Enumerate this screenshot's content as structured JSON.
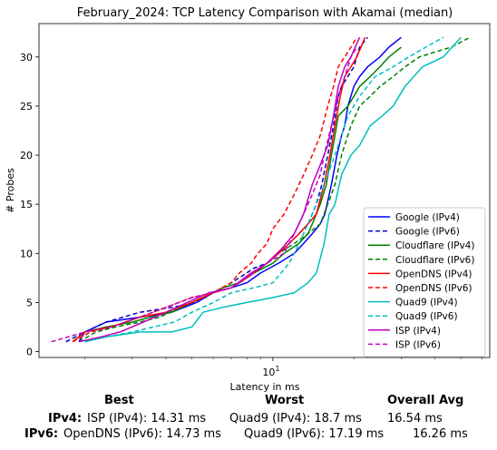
{
  "chart_data": {
    "type": "line",
    "title": "February_2024: TCP Latency Comparison with Akamai (median)",
    "xlabel": "Latency in ms",
    "ylabel": "# Probes",
    "xscale": "log",
    "xlim": [
      1.35,
      64
    ],
    "ylim": [
      -0.6,
      33.4
    ],
    "xticks": [
      {
        "value": 10,
        "label": "10^1",
        "base": "10",
        "exp": "1"
      }
    ],
    "yticks": [
      0,
      5,
      10,
      15,
      20,
      25,
      30
    ],
    "grid": false,
    "legend_position": "lower right",
    "series": [
      {
        "name": "Google (IPv4)",
        "color": "#0000ff",
        "dash": "solid",
        "x": [
          1.9,
          2.0,
          2.4,
          3.2,
          4.2,
          5.2,
          6.0,
          7.0,
          8.0,
          9.0,
          10.5,
          12.0,
          13.0,
          14.0,
          15.0,
          15.6,
          16.5,
          17.3,
          18.0,
          18.5,
          19.0,
          20.0,
          21.0,
          22.5,
          25.0,
          27.0,
          30.0
        ],
        "y": [
          1,
          2,
          3,
          3.5,
          4,
          5,
          6,
          6.5,
          7,
          8,
          9,
          10,
          11,
          12,
          13,
          14,
          17,
          20,
          22,
          23,
          25,
          27,
          28,
          29,
          30,
          31,
          32
        ]
      },
      {
        "name": "Google (IPv6)",
        "color": "#0000cc",
        "dash": "dashed",
        "x": [
          1.7,
          2.0,
          2.4,
          3.2,
          4.2,
          5.2,
          6.0,
          7.0,
          7.5,
          8.5,
          9.5,
          10.5,
          11.5,
          12.5,
          13.5,
          14.5,
          15.2,
          16.0,
          16.8,
          17.5,
          18.0,
          19.0,
          20.0,
          21.0,
          22.5
        ],
        "y": [
          1,
          2,
          3,
          4,
          4.5,
          5,
          6,
          7,
          7.5,
          8.5,
          9,
          10,
          11,
          12,
          13,
          15,
          17,
          20,
          23,
          26,
          27,
          28,
          29,
          31,
          32
        ]
      },
      {
        "name": "Cloudflare (IPv4)",
        "color": "#008000",
        "dash": "solid",
        "x": [
          1.8,
          2.0,
          2.4,
          3.0,
          3.5,
          4.2,
          5.0,
          5.5,
          6.5,
          7.5,
          8.5,
          10.0,
          11.0,
          12.5,
          13.5,
          14.0,
          15.0,
          15.8,
          16.5,
          17.0,
          17.5,
          19.0,
          20.0,
          21.0,
          23.0,
          25.0,
          27.0,
          30.0
        ],
        "y": [
          1,
          2,
          2.5,
          3,
          3.5,
          4,
          5,
          5.5,
          6.5,
          7,
          8,
          9,
          10,
          11,
          12,
          13,
          15,
          17,
          20,
          22,
          24,
          25,
          26,
          27,
          28,
          29,
          30,
          31
        ]
      },
      {
        "name": "Cloudflare (IPv6)",
        "color": "#008000",
        "dash": "dashed",
        "x": [
          1.9,
          2.2,
          2.6,
          3.2,
          3.8,
          4.5,
          5.5,
          6.5,
          7.5,
          8.5,
          9.5,
          10.5,
          12.0,
          13.5,
          15.0,
          16.0,
          17.0,
          18.0,
          19.5,
          21.0,
          23.0,
          25.0,
          28.0,
          31.0,
          35.0,
          40.0,
          46.0,
          54.0
        ],
        "y": [
          1,
          2,
          2.5,
          3,
          3.5,
          4.5,
          5.5,
          6.5,
          7,
          8,
          9,
          10,
          11,
          12,
          13,
          15,
          17,
          20,
          23,
          25,
          26,
          27,
          28,
          29,
          30,
          30.5,
          31,
          32
        ]
      },
      {
        "name": "OpenDNS (IPv4)",
        "color": "#ff0000",
        "dash": "solid",
        "x": [
          1.8,
          2.0,
          2.5,
          3.2,
          4.0,
          5.0,
          6.0,
          7.0,
          8.0,
          9.5,
          11.0,
          12.5,
          13.5,
          14.5,
          15.5,
          16.3,
          17.0,
          17.8,
          18.5,
          19.5,
          20.5,
          22.0
        ],
        "y": [
          1,
          2,
          2.5,
          3.5,
          4,
          5,
          6,
          6.5,
          7.5,
          9,
          10.5,
          12,
          13,
          14,
          17,
          20,
          23,
          26,
          28,
          29,
          30,
          32
        ]
      },
      {
        "name": "OpenDNS (IPv6)",
        "color": "#ff0000",
        "dash": "dashed",
        "x": [
          1.8,
          2.1,
          2.5,
          3.2,
          4.0,
          5.0,
          6.0,
          7.0,
          7.5,
          8.3,
          8.8,
          9.5,
          10.0,
          11.0,
          12.0,
          13.0,
          14.0,
          15.0,
          16.0,
          16.8,
          17.5,
          18.5,
          19.5,
          20.5
        ],
        "y": [
          1,
          2,
          2.5,
          3.5,
          4.5,
          5.5,
          6,
          7,
          8,
          9,
          10,
          11,
          12.5,
          14,
          16,
          18,
          20,
          22,
          25,
          27,
          29,
          30,
          31,
          32
        ]
      },
      {
        "name": "Quad9 (IPv4)",
        "color": "#00bfbf",
        "dash": "solid",
        "x": [
          2.0,
          2.4,
          3.2,
          4.2,
          5.0,
          5.5,
          6.5,
          8.0,
          10.0,
          12.0,
          13.5,
          14.5,
          15.5,
          16.2,
          17.0,
          18.0,
          19.5,
          21.0,
          23.0,
          25.5,
          28.0,
          31.0,
          36.0,
          43.0,
          50.0
        ],
        "y": [
          1,
          1.5,
          2,
          2,
          2.5,
          4,
          4.5,
          5,
          5.5,
          6,
          7,
          8,
          11,
          14,
          15,
          18,
          20,
          21,
          23,
          24,
          25,
          27,
          29,
          30,
          32
        ]
      },
      {
        "name": "Quad9 (IPv6)",
        "color": "#00bfbf",
        "dash": "dashed",
        "x": [
          2.0,
          2.4,
          3.0,
          3.6,
          4.3,
          5.0,
          6.0,
          7.0,
          8.5,
          10.0,
          11.5,
          12.5,
          13.5,
          14.5,
          15.5,
          16.5,
          17.5,
          19.0,
          21.0,
          24.0,
          28.0,
          32.0,
          37.0,
          43.0
        ],
        "y": [
          1,
          1.5,
          2,
          2.5,
          3,
          4,
          5,
          6,
          6.5,
          7,
          9,
          11,
          13,
          15,
          17,
          19,
          21,
          24,
          26,
          28,
          29,
          30,
          31,
          32
        ]
      },
      {
        "name": "ISP (IPv4)",
        "color": "#bf00bf",
        "dash": "solid",
        "x": [
          1.9,
          2.3,
          2.7,
          3.3,
          4.0,
          4.8,
          5.8,
          7.0,
          8.3,
          9.5,
          10.8,
          12.0,
          13.0,
          14.0,
          15.0,
          16.0,
          16.8,
          17.5,
          18.5,
          19.5,
          21.0
        ],
        "y": [
          1,
          1.5,
          2,
          3,
          4,
          5,
          6,
          6.5,
          8,
          9,
          10.5,
          12,
          14,
          17,
          19,
          21,
          24,
          27,
          29,
          30,
          32
        ]
      },
      {
        "name": "ISP (IPv6)",
        "color": "#bf00bf",
        "dash": "dashed",
        "x": [
          1.5,
          2.0,
          2.5,
          3.2,
          4.0,
          5.0,
          6.0,
          7.0,
          8.5,
          9.5,
          11.0,
          12.0,
          13.0,
          14.0,
          15.0,
          15.5,
          16.5,
          17.5,
          18.5,
          19.5,
          20.5
        ],
        "y": [
          1,
          2,
          2.5,
          3.5,
          4.5,
          5.5,
          6,
          6.5,
          8,
          9,
          10,
          12,
          14,
          16,
          18,
          20,
          23,
          26,
          28,
          30,
          31
        ]
      }
    ]
  },
  "summary": {
    "headers": {
      "best": "Best",
      "worst": "Worst",
      "avg": "Overall Avg"
    },
    "rows": [
      {
        "label": "IPv4:",
        "best": "ISP (IPv4): 14.31 ms",
        "worst": "Quad9 (IPv4): 18.7 ms",
        "avg": "16.54 ms"
      },
      {
        "label": "IPv6:",
        "best": "OpenDNS (IPv6): 14.73 ms",
        "worst": "Quad9 (IPv6): 17.19 ms",
        "avg": "16.26 ms"
      }
    ]
  }
}
